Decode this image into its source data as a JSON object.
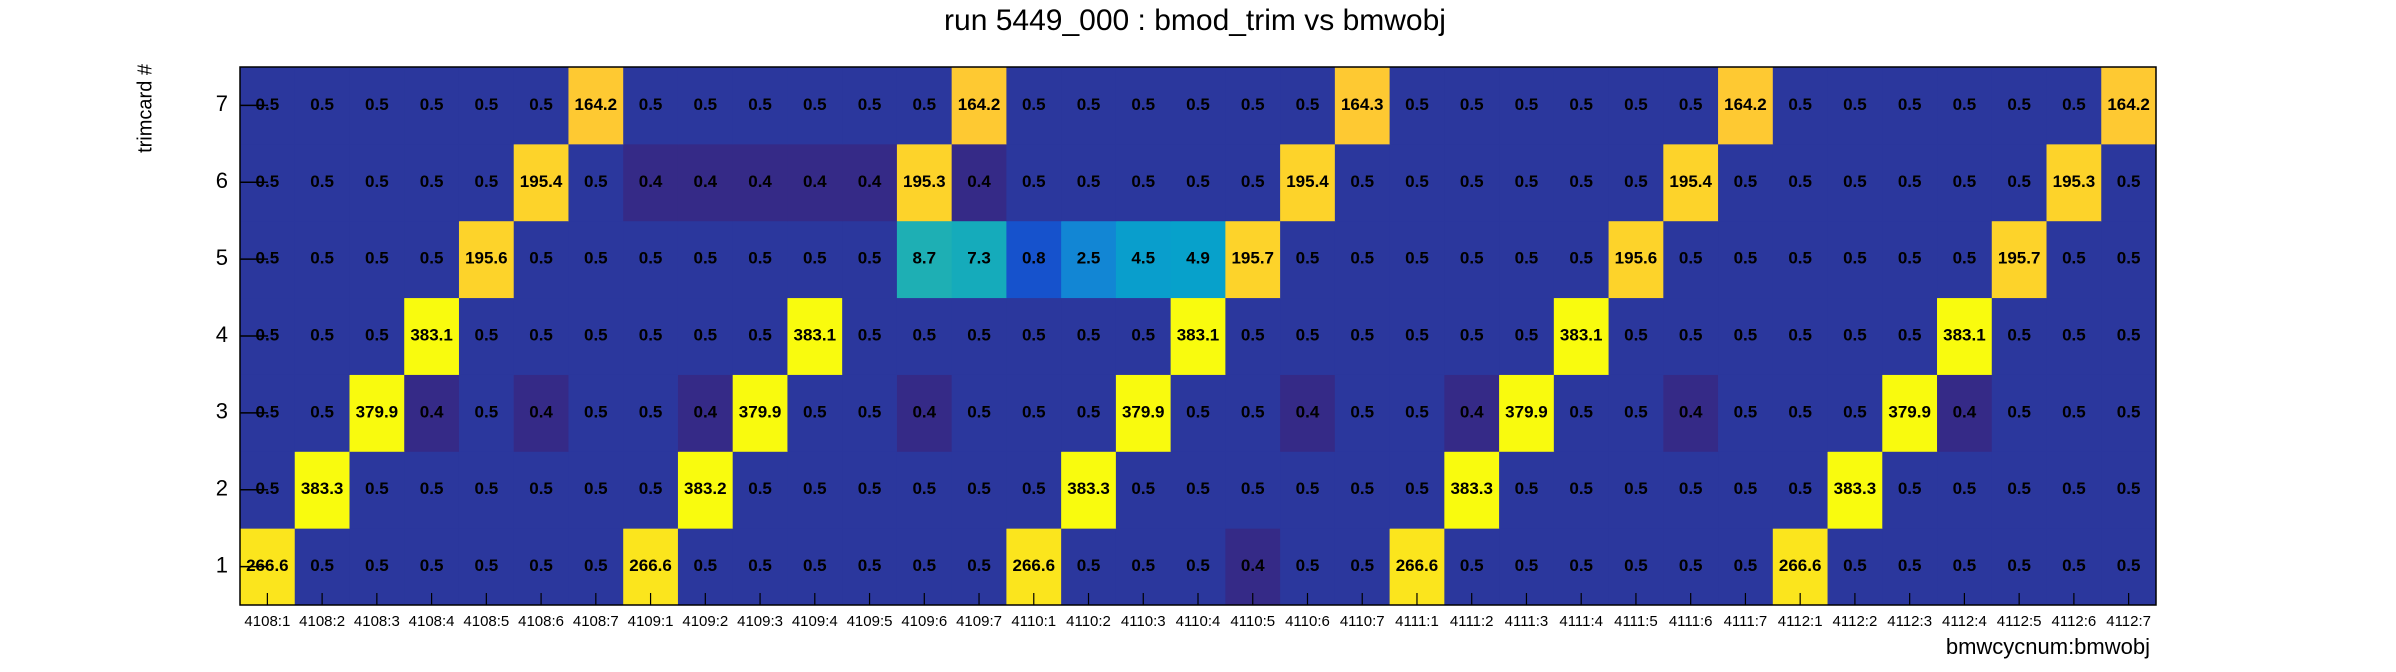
{
  "chart_data": {
    "type": "heatmap",
    "title": "run 5449_000 : bmod_trim vs bmwobj",
    "x_label": "bmwcycnum:bmwobj",
    "y_label": "trimcard #",
    "x_categories": [
      "4108:1",
      "4108:2",
      "4108:3",
      "4108:4",
      "4108:5",
      "4108:6",
      "4108:7",
      "4109:1",
      "4109:2",
      "4109:3",
      "4109:4",
      "4109:5",
      "4109:6",
      "4109:7",
      "4110:1",
      "4110:2",
      "4110:3",
      "4110:4",
      "4110:5",
      "4110:6",
      "4110:7",
      "4111:1",
      "4111:2",
      "4111:3",
      "4111:4",
      "4111:5",
      "4111:6",
      "4111:7",
      "4112:1",
      "4112:2",
      "4112:3",
      "4112:4",
      "4112:5",
      "4112:6",
      "4112:7"
    ],
    "y_categories": [
      "1",
      "2",
      "3",
      "4",
      "5",
      "6",
      "7"
    ],
    "z": [
      [
        266.6,
        0.5,
        0.5,
        0.5,
        0.5,
        0.5,
        0.5,
        266.6,
        0.5,
        0.5,
        0.5,
        0.5,
        0.5,
        0.5,
        266.6,
        0.5,
        0.5,
        0.5,
        0.4,
        0.5,
        0.5,
        266.6,
        0.5,
        0.5,
        0.5,
        0.5,
        0.5,
        0.5,
        266.6,
        0.5,
        0.5,
        0.5,
        0.5,
        0.5,
        0.5
      ],
      [
        0.5,
        383.3,
        0.5,
        0.5,
        0.5,
        0.5,
        0.5,
        0.5,
        383.2,
        0.5,
        0.5,
        0.5,
        0.5,
        0.5,
        0.5,
        383.3,
        0.5,
        0.5,
        0.5,
        0.5,
        0.5,
        0.5,
        383.3,
        0.5,
        0.5,
        0.5,
        0.5,
        0.5,
        0.5,
        383.3,
        0.5,
        0.5,
        0.5,
        0.5,
        0.5
      ],
      [
        0.5,
        0.5,
        379.9,
        0.4,
        0.5,
        0.4,
        0.5,
        0.5,
        0.4,
        379.9,
        0.5,
        0.5,
        0.4,
        0.5,
        0.5,
        0.5,
        379.9,
        0.5,
        0.5,
        0.4,
        0.5,
        0.5,
        0.4,
        379.9,
        0.5,
        0.5,
        0.4,
        0.5,
        0.5,
        0.5,
        379.9,
        0.4,
        0.5,
        0.5,
        0.5
      ],
      [
        0.5,
        0.5,
        0.5,
        383.1,
        0.5,
        0.5,
        0.5,
        0.5,
        0.5,
        0.5,
        383.1,
        0.5,
        0.5,
        0.5,
        0.5,
        0.5,
        0.5,
        383.1,
        0.5,
        0.5,
        0.5,
        0.5,
        0.5,
        0.5,
        383.1,
        0.5,
        0.5,
        0.5,
        0.5,
        0.5,
        0.5,
        383.1,
        0.5,
        0.5,
        0.5
      ],
      [
        0.5,
        0.5,
        0.5,
        0.5,
        195.6,
        0.5,
        0.5,
        0.5,
        0.5,
        0.5,
        0.5,
        0.5,
        8.7,
        7.3,
        0.8,
        2.5,
        4.5,
        4.9,
        195.7,
        0.5,
        0.5,
        0.5,
        0.5,
        0.5,
        0.5,
        195.6,
        0.5,
        0.5,
        0.5,
        0.5,
        0.5,
        0.5,
        195.7,
        0.5,
        0.5
      ],
      [
        0.5,
        0.5,
        0.5,
        0.5,
        0.5,
        195.4,
        0.5,
        0.4,
        0.4,
        0.4,
        0.4,
        0.4,
        195.3,
        0.4,
        0.5,
        0.5,
        0.5,
        0.5,
        0.5,
        195.4,
        0.5,
        0.5,
        0.5,
        0.5,
        0.5,
        0.5,
        195.4,
        0.5,
        0.5,
        0.5,
        0.5,
        0.5,
        0.5,
        195.3,
        0.5
      ],
      [
        0.5,
        0.5,
        0.5,
        0.5,
        0.5,
        0.5,
        164.2,
        0.5,
        0.5,
        0.5,
        0.5,
        0.5,
        0.5,
        164.2,
        0.5,
        0.5,
        0.5,
        0.5,
        0.5,
        0.5,
        164.3,
        0.5,
        0.5,
        0.5,
        0.5,
        0.5,
        0.5,
        164.2,
        0.5,
        0.5,
        0.5,
        0.5,
        0.5,
        0.5,
        164.2
      ]
    ],
    "zlog": true,
    "colorscale": [
      "#352a87",
      "#0f5cdd",
      "#1481d6",
      "#06a4ca",
      "#2eb7a4",
      "#87bf77",
      "#d1bb59",
      "#fec832",
      "#f9fb0e"
    ]
  }
}
